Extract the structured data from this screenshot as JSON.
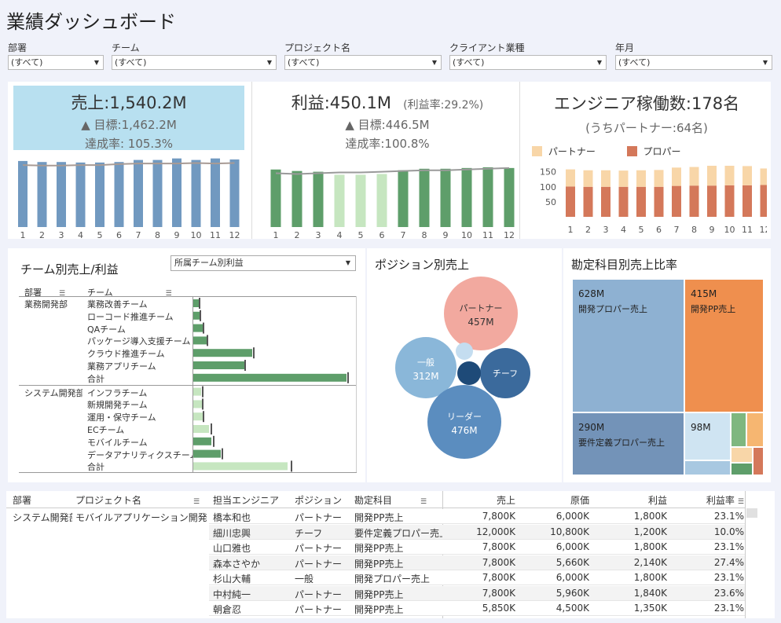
{
  "title": "業績ダッシュボード",
  "filters": [
    {
      "label": "部署",
      "value": "(すべて)"
    },
    {
      "label": "チーム",
      "value": "(すべて)"
    },
    {
      "label": "プロジェクト名",
      "value": "(すべて)"
    },
    {
      "label": "クライアント業種",
      "value": "(すべて)"
    },
    {
      "label": "年月",
      "value": "(すべて)"
    }
  ],
  "kpi": {
    "sales": {
      "main": "売上:1,540.2M",
      "target": "▲ 目標:1,462.2M",
      "rate": "達成率: 105.3%",
      "bg_color": "#b8e0f0"
    },
    "profit": {
      "main": "利益:450.1M",
      "note": "(利益率:29.2%)",
      "target": "▲ 目標:446.5M",
      "rate": "達成率:100.8%"
    },
    "engineers": {
      "main": "エンジニア稼働数:178名",
      "sub": "(うちパートナー:64名)",
      "legend": [
        {
          "label": "パートナー",
          "color": "#f8d6a8"
        },
        {
          "label": "プロパー",
          "color": "#d4785a"
        }
      ]
    }
  },
  "chart_data": [
    {
      "type": "bar",
      "title": "売上",
      "categories": [
        "1",
        "2",
        "3",
        "4",
        "5",
        "6",
        "7",
        "8",
        "9",
        "10",
        "11",
        "12"
      ],
      "series": [
        {
          "name": "売上",
          "values": [
            129,
            127,
            127,
            126,
            126,
            127,
            131,
            131,
            134,
            131,
            134,
            132
          ]
        },
        {
          "name": "目標",
          "values": [
            121,
            120,
            120,
            121,
            121,
            123,
            124,
            124,
            124,
            125,
            124,
            125
          ]
        }
      ],
      "ylim": [
        0,
        135
      ],
      "color": "#7199c0"
    },
    {
      "type": "bar",
      "title": "利益",
      "categories": [
        "1",
        "2",
        "3",
        "4",
        "5",
        "6",
        "7",
        "8",
        "9",
        "10",
        "11",
        "12"
      ],
      "series": [
        {
          "name": "利益",
          "values": [
            38.5,
            37.5,
            37,
            35,
            35,
            35.5,
            38,
            39,
            39,
            39.5,
            40,
            39.5
          ]
        },
        {
          "name": "目標",
          "values": [
            36,
            35.5,
            36,
            36.5,
            36.5,
            37,
            37.5,
            38,
            38,
            38.5,
            39,
            39.5
          ]
        }
      ],
      "below_target_color": "#c6e6c0",
      "color": "#5e9e6a",
      "ylim": [
        0,
        41
      ]
    },
    {
      "type": "bar",
      "title": "エンジニア稼働数",
      "categories": [
        "1",
        "2",
        "3",
        "4",
        "5",
        "6",
        "7",
        "8",
        "9",
        "10",
        "11",
        "12"
      ],
      "series": [
        {
          "name": "プロパー",
          "values": [
            101,
            100,
            100,
            100,
            100,
            100,
            103,
            104,
            104,
            105,
            105,
            106
          ]
        },
        {
          "name": "パートナー",
          "values": [
            57,
            55,
            55,
            54,
            55,
            56,
            61,
            62,
            66,
            65,
            64,
            55
          ]
        }
      ],
      "yticks": [
        50,
        100,
        150
      ],
      "ylim": [
        0,
        170
      ]
    },
    {
      "type": "bar",
      "title": "チーム別売上/利益",
      "orientation": "horizontal",
      "categories": [
        "業務改善チーム",
        "ローコード推進チーム",
        "QAチーム",
        "パッケージ導入支援チーム",
        "クラウド推進チーム",
        "業務アプリチーム",
        "合計",
        "インフラチーム",
        "新規開発チーム",
        "運用・保守チーム",
        "ECチーム",
        "モバイルチーム",
        "データアナリティクスチーム",
        "合計"
      ],
      "series": [
        {
          "name": "利益",
          "values": [
            7,
            8,
            13,
            17,
            75,
            65,
            195,
            10,
            12,
            12,
            20,
            23,
            35,
            120
          ]
        },
        {
          "name": "目標",
          "values": [
            8,
            9,
            13,
            18,
            77,
            66,
            197,
            12,
            12,
            13,
            23,
            26,
            37,
            125
          ]
        }
      ],
      "colors": [
        "#5e9e6a",
        "#c6e6c0"
      ]
    },
    {
      "type": "bubble",
      "title": "ポジション別売上",
      "labels": [
        "パートナー",
        "一般",
        "チーフ",
        "リーダー",
        "",
        ""
      ],
      "values": [
        457,
        312,
        240,
        476,
        120,
        40
      ],
      "value_labels": [
        "457M",
        "312M",
        "",
        "476M",
        "",
        ""
      ],
      "colors": [
        "#f2a99f",
        "#8ab7d9",
        "#3b6a9c",
        "#5b8dbf",
        "#1e4a78",
        "#c4ddf0"
      ]
    },
    {
      "type": "treemap",
      "title": "勘定科目別売上比率",
      "labels": [
        "開発プロパー売上",
        "開発PP売上",
        "要件定義プロパー売上",
        "",
        "",
        "",
        "",
        "",
        "",
        ""
      ],
      "values": [
        628,
        415,
        290,
        98,
        24,
        19,
        29,
        17,
        17,
        11
      ],
      "value_labels": [
        "628M",
        "415M",
        "290M",
        "98M",
        "",
        "",
        "",
        "",
        "",
        ""
      ],
      "colors": [
        "#8eb1d2",
        "#ef8f4e",
        "#7393b8",
        "#cfe4f2",
        "#a8c8e1",
        "#7fb77f",
        "#f6b671",
        "#f8d6a8",
        "#5e9e6a",
        "#d4785a"
      ]
    }
  ],
  "team": {
    "selector": "所属チーム別利益",
    "col_dept": "部署",
    "col_team": "チーム",
    "groups": [
      {
        "dept": "業務開発部",
        "teams": [
          "業務改善チーム",
          "ローコード推進チーム",
          "QAチーム",
          "パッケージ導入支援チーム",
          "クラウド推進チーム",
          "業務アプリチーム",
          "合計"
        ]
      },
      {
        "dept": "システム開発部",
        "teams": [
          "インフラチーム",
          "新規開発チーム",
          "運用・保守チーム",
          "ECチーム",
          "モバイルチーム",
          "データアナリティクスチーム",
          "合計"
        ]
      }
    ]
  },
  "table": {
    "headers": {
      "dept": "部署",
      "project": "プロジェクト名",
      "engineer": "担当エンジニア",
      "position": "ポジション",
      "account": "勘定科目",
      "sales": "売上",
      "cost": "原価",
      "profit": "利益",
      "rate": "利益率"
    },
    "dept": "システム開発部",
    "project": "モバイルアプリケーション開発",
    "rows": [
      {
        "engineer": "橋本和也",
        "position": "パートナー",
        "account": "開発PP売上",
        "sales": "7,800K",
        "cost": "6,000K",
        "profit": "1,800K",
        "rate": "23.1%"
      },
      {
        "engineer": "細川忠興",
        "position": "チーフ",
        "account": "要件定義プロパー売上",
        "sales": "12,000K",
        "cost": "10,800K",
        "profit": "1,200K",
        "rate": "10.0%"
      },
      {
        "engineer": "山口雅也",
        "position": "パートナー",
        "account": "開発PP売上",
        "sales": "7,800K",
        "cost": "6,000K",
        "profit": "1,800K",
        "rate": "23.1%"
      },
      {
        "engineer": "森本さやか",
        "position": "パートナー",
        "account": "開発PP売上",
        "sales": "7,800K",
        "cost": "5,660K",
        "profit": "2,140K",
        "rate": "27.4%"
      },
      {
        "engineer": "杉山大輔",
        "position": "一般",
        "account": "開発プロパー売上",
        "sales": "7,800K",
        "cost": "6,000K",
        "profit": "1,800K",
        "rate": "23.1%"
      },
      {
        "engineer": "中村純一",
        "position": "パートナー",
        "account": "開発PP売上",
        "sales": "7,800K",
        "cost": "5,960K",
        "profit": "1,840K",
        "rate": "23.6%"
      },
      {
        "engineer": "朝倉忍",
        "position": "パートナー",
        "account": "開発PP売上",
        "sales": "5,850K",
        "cost": "4,500K",
        "profit": "1,350K",
        "rate": "23.1%"
      }
    ]
  }
}
